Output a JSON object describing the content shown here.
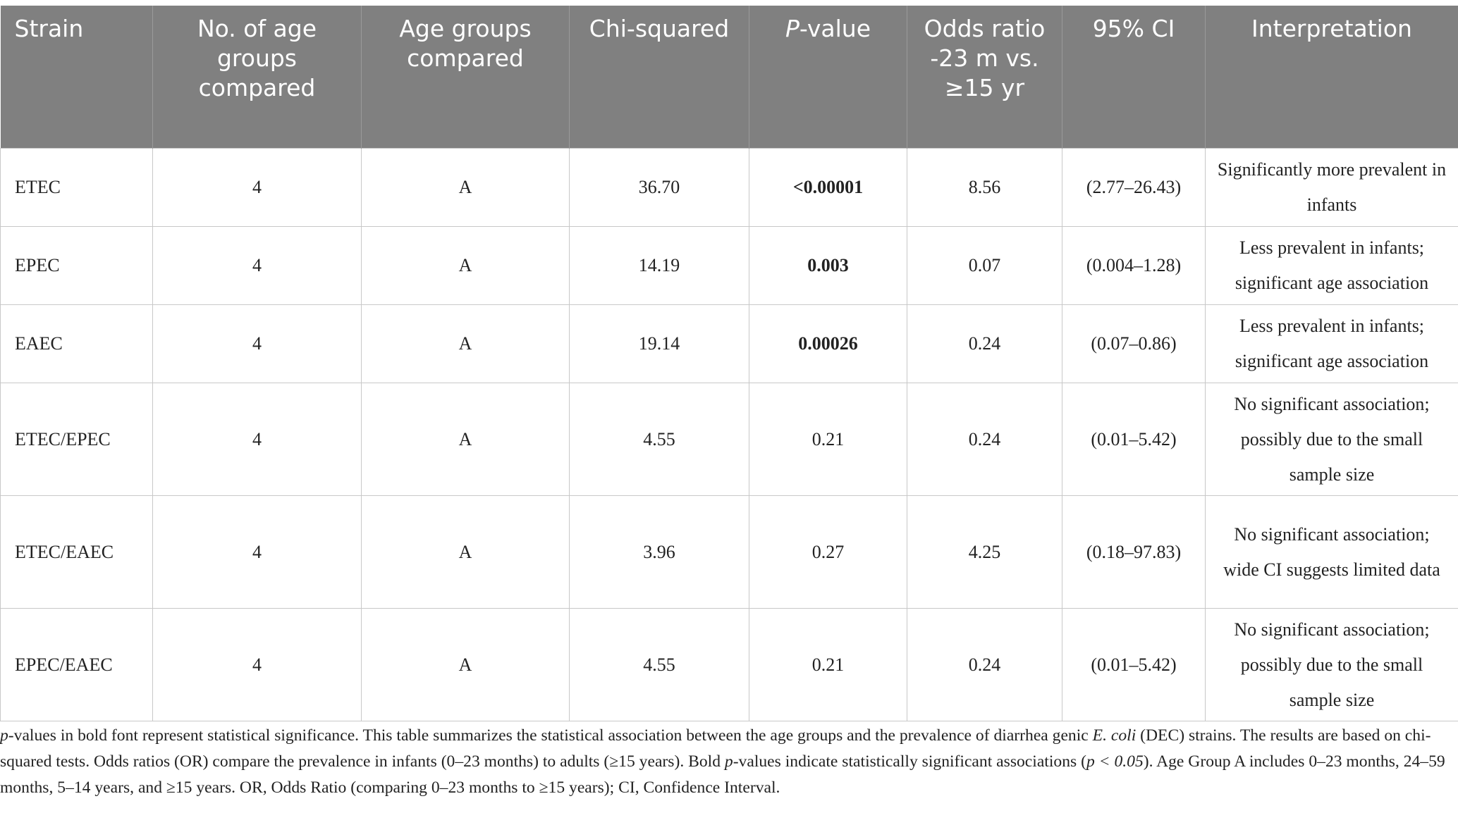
{
  "table": {
    "columns": [
      "Strain",
      "No. of age groups compared",
      "Age groups compared",
      "Chi-squared",
      [
        "P",
        "-value"
      ],
      "Odds ratio -23 m vs. ≥15 yr",
      "95% CI",
      "Interpretation"
    ],
    "rows": [
      [
        "ETEC",
        "4",
        "A",
        "36.70",
        "<0.00001",
        "8.56",
        "(2.77–26.43)",
        "Significantly more prevalent in infants"
      ],
      [
        "EPEC",
        "4",
        "A",
        "14.19",
        "0.003",
        "0.07",
        "(0.004–1.28)",
        "Less prevalent in infants; significant age association"
      ],
      [
        "EAEC",
        "4",
        "A",
        "19.14",
        "0.00026",
        "0.24",
        "(0.07–0.86)",
        "Less prevalent in infants; significant age association"
      ],
      [
        "ETEC/EPEC",
        "4",
        "A",
        "4.55",
        "0.21",
        "0.24",
        "(0.01–5.42)",
        "No significant association; possibly due to the small sample size"
      ],
      [
        "ETEC/EAEC",
        "4",
        "A",
        "3.96",
        "0.27",
        "4.25",
        "(0.18–97.83)",
        "No significant association; wide CI suggests limited data"
      ],
      [
        "EPEC/EAEC",
        "4",
        "A",
        "4.55",
        "0.21",
        "0.24",
        "(0.01–5.42)",
        "No significant association; possibly due to the small sample size"
      ]
    ]
  },
  "footnote": [
    "p",
    "-values in bold font represent statistical significance. This table summarizes the statistical association between the age groups and the prevalence of diarrhea genic ",
    "E. coli",
    " (DEC) strains. The results are based on chi-squared tests. Odds ratios (OR) compare the prevalence in infants (0–23 months) to adults (≥15 years). Bold ",
    "p",
    "-values indicate statistically significant associations (",
    "p < 0.05",
    "). Age Group A includes 0–23 months, 24–59 months, 5–14 years, and ≥15 years. OR, Odds Ratio (comparing 0–23 months to ≥15 years); CI, Confidence Interval."
  ]
}
